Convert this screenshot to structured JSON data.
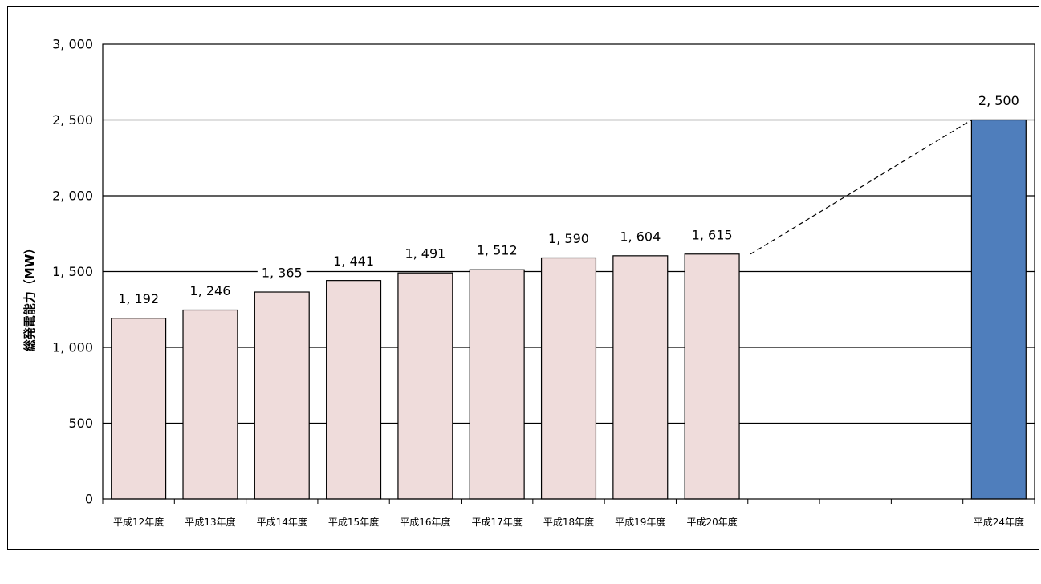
{
  "chart_data": {
    "type": "bar",
    "title": "",
    "xlabel": "",
    "ylabel": "総発電能力（MW）",
    "ylim": [
      0,
      3000
    ],
    "yticks": [
      "0",
      "500",
      "1, 000",
      "1, 500",
      "2, 000",
      "2, 500",
      "3, 000"
    ],
    "grid": true,
    "categories": [
      "平成12年度",
      "平成13年度",
      "平成14年度",
      "平成15年度",
      "平成16年度",
      "平成17年度",
      "平成18年度",
      "平成19年度",
      "平成20年度",
      "",
      "",
      "",
      "平成24年度"
    ],
    "values": [
      1192,
      1246,
      1365,
      1441,
      1491,
      1512,
      1590,
      1604,
      1615,
      null,
      null,
      null,
      2500
    ],
    "data_labels": [
      "1, 192",
      "1, 246",
      "1, 365",
      "1, 441",
      "1, 491",
      "1, 512",
      "1, 590",
      "1, 604",
      "1, 615",
      "",
      "",
      "",
      "2, 500"
    ],
    "colors": {
      "actual": "#efdcdb",
      "target": "#4f7ebc",
      "border": "#000000"
    },
    "annotations": [
      {
        "type": "dashed-line",
        "from_category": "平成20年度",
        "to_category": "平成24年度"
      }
    ]
  }
}
